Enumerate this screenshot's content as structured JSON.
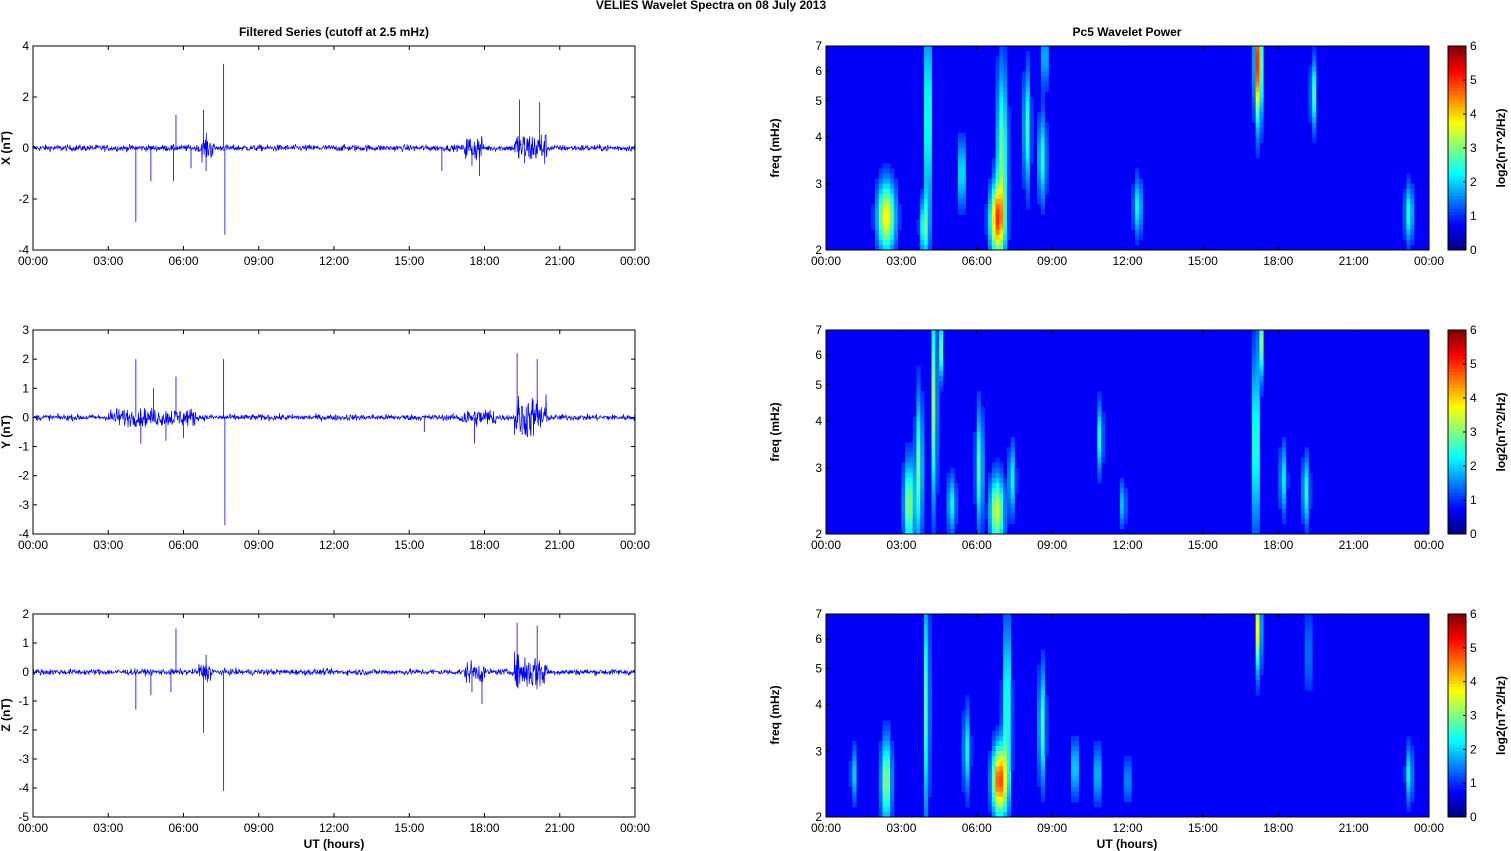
{
  "figure_title": "VELIES Wavelet Spectra on 08 July      2013",
  "colors": {
    "trace": "#0000ff",
    "axes": "#000000"
  },
  "chart_data": [
    {
      "type": "line",
      "title": "Filtered Series (cutoff at 2.5 mHz)",
      "ylabel": "X (nT)",
      "xlabel": "",
      "xlim": [
        0,
        24
      ],
      "ylim": [
        -4,
        4
      ],
      "yticks": [
        -4,
        -2,
        0,
        2,
        4
      ],
      "xtick_labels": [
        "00:00",
        "03:00",
        "06:00",
        "09:00",
        "12:00",
        "15:00",
        "18:00",
        "21:00",
        "00:00"
      ],
      "base_noise": 0.12,
      "spikes": [
        [
          4.1,
          -2.9
        ],
        [
          4.7,
          -1.3
        ],
        [
          5.6,
          -1.3
        ],
        [
          5.7,
          1.3
        ],
        [
          6.3,
          -0.8
        ],
        [
          6.8,
          1.5
        ],
        [
          6.9,
          -0.9
        ],
        [
          7.6,
          3.3
        ],
        [
          7.65,
          -3.4
        ],
        [
          16.3,
          -0.9
        ],
        [
          17.5,
          -0.7
        ],
        [
          17.8,
          -1.1
        ],
        [
          19.4,
          1.9
        ],
        [
          19.6,
          -0.6
        ],
        [
          20.2,
          1.8
        ]
      ],
      "bursts": [
        [
          6.6,
          7.2,
          0.45
        ],
        [
          17.2,
          17.9,
          0.5
        ],
        [
          19.2,
          20.5,
          0.6
        ]
      ]
    },
    {
      "type": "heatmap",
      "title": "Pc5 Wavelet Power",
      "ylabel": "freq (mHz)",
      "xlabel": "",
      "xlim": [
        0,
        24
      ],
      "ylim": [
        2,
        7
      ],
      "yscale": "log",
      "yticks": [
        2,
        3,
        4,
        5,
        6,
        7
      ],
      "xtick_labels": [
        "00:00",
        "03:00",
        "06:00",
        "09:00",
        "12:00",
        "15:00",
        "18:00",
        "21:00",
        "00:00"
      ],
      "colorbar": {
        "label": "log2(nT^2/Hz)",
        "ticks": [
          0,
          1,
          2,
          3,
          4,
          5,
          6
        ],
        "range": [
          0,
          6
        ],
        "colormap": "jet"
      },
      "blobs": [
        [
          2.4,
          2.45,
          0.25,
          0.12,
          3.6
        ],
        [
          3.9,
          2.3,
          0.12,
          0.1,
          2.2
        ],
        [
          4.05,
          4.5,
          0.08,
          0.35,
          2.8
        ],
        [
          5.4,
          3.2,
          0.12,
          0.12,
          1.8
        ],
        [
          6.8,
          2.4,
          0.2,
          0.12,
          4.2
        ],
        [
          7.0,
          3.6,
          0.15,
          0.3,
          2.5
        ],
        [
          8.0,
          4.2,
          0.1,
          0.2,
          2.2
        ],
        [
          8.6,
          3.5,
          0.12,
          0.15,
          2.0
        ],
        [
          8.7,
          6.5,
          0.06,
          0.1,
          2.5
        ],
        [
          12.4,
          2.6,
          0.12,
          0.1,
          1.8
        ],
        [
          17.2,
          6.3,
          0.1,
          0.2,
          5.0
        ],
        [
          19.4,
          5.2,
          0.08,
          0.12,
          2.2
        ],
        [
          23.2,
          2.5,
          0.12,
          0.1,
          2.0
        ]
      ]
    },
    {
      "type": "line",
      "title": "",
      "ylabel": "Y (nT)",
      "xlabel": "",
      "xlim": [
        0,
        24
      ],
      "ylim": [
        -4,
        3
      ],
      "yticks": [
        -4,
        -3,
        -2,
        -1,
        0,
        1,
        2,
        3
      ],
      "xtick_labels": [
        "00:00",
        "03:00",
        "06:00",
        "09:00",
        "12:00",
        "15:00",
        "18:00",
        "21:00",
        "00:00"
      ],
      "base_noise": 0.1,
      "spikes": [
        [
          4.1,
          2.0
        ],
        [
          4.3,
          -0.9
        ],
        [
          4.8,
          1.0
        ],
        [
          5.3,
          -0.8
        ],
        [
          5.7,
          1.4
        ],
        [
          6.0,
          -0.7
        ],
        [
          7.6,
          2.0
        ],
        [
          7.65,
          -3.7
        ],
        [
          15.6,
          -0.5
        ],
        [
          17.6,
          -0.9
        ],
        [
          19.3,
          2.2
        ],
        [
          19.5,
          -0.6
        ],
        [
          20.1,
          2.0
        ]
      ],
      "bursts": [
        [
          3.0,
          6.5,
          0.3
        ],
        [
          17.0,
          18.5,
          0.3
        ],
        [
          19.2,
          20.5,
          0.7
        ]
      ]
    },
    {
      "type": "heatmap",
      "title": "",
      "ylabel": "freq (mHz)",
      "xlabel": "",
      "xlim": [
        0,
        24
      ],
      "ylim": [
        2,
        7
      ],
      "yscale": "log",
      "yticks": [
        2,
        3,
        4,
        5,
        6,
        7
      ],
      "xtick_labels": [
        "00:00",
        "03:00",
        "06:00",
        "09:00",
        "12:00",
        "15:00",
        "18:00",
        "21:00",
        "00:00"
      ],
      "colorbar": {
        "label": "log2(nT^2/Hz)",
        "ticks": [
          0,
          1,
          2,
          3,
          4,
          5,
          6
        ],
        "range": [
          0,
          6
        ],
        "colormap": "jet"
      },
      "blobs": [
        [
          3.3,
          2.4,
          0.15,
          0.15,
          2.8
        ],
        [
          3.7,
          3.0,
          0.1,
          0.25,
          2.5
        ],
        [
          4.3,
          4.5,
          0.08,
          0.35,
          2.8
        ],
        [
          4.6,
          6.2,
          0.06,
          0.1,
          2.5
        ],
        [
          5.0,
          2.4,
          0.12,
          0.1,
          1.8
        ],
        [
          6.1,
          3.0,
          0.1,
          0.2,
          2.3
        ],
        [
          6.8,
          2.3,
          0.2,
          0.12,
          3.2
        ],
        [
          7.4,
          2.8,
          0.1,
          0.12,
          1.8
        ],
        [
          10.9,
          3.6,
          0.08,
          0.12,
          2.0
        ],
        [
          11.8,
          2.4,
          0.1,
          0.08,
          1.4
        ],
        [
          17.1,
          3.5,
          0.1,
          0.3,
          2.5
        ],
        [
          17.3,
          6.5,
          0.06,
          0.12,
          2.8
        ],
        [
          18.2,
          2.8,
          0.1,
          0.12,
          1.7
        ],
        [
          19.1,
          2.6,
          0.1,
          0.12,
          2.0
        ]
      ]
    },
    {
      "type": "line",
      "title": "",
      "ylabel": "Z (nT)",
      "xlabel": "UT (hours)",
      "xlim": [
        0,
        24
      ],
      "ylim": [
        -5,
        2
      ],
      "yticks": [
        -5,
        -4,
        -3,
        -2,
        -1,
        0,
        1,
        2
      ],
      "xtick_labels": [
        "00:00",
        "03:00",
        "06:00",
        "09:00",
        "12:00",
        "15:00",
        "18:00",
        "21:00",
        "00:00"
      ],
      "base_noise": 0.1,
      "spikes": [
        [
          4.1,
          -1.3
        ],
        [
          4.7,
          -0.8
        ],
        [
          5.5,
          -0.7
        ],
        [
          5.7,
          1.5
        ],
        [
          6.8,
          -2.1
        ],
        [
          6.9,
          0.6
        ],
        [
          7.6,
          -4.1
        ],
        [
          17.5,
          -0.7
        ],
        [
          17.9,
          -1.1
        ],
        [
          19.3,
          1.7
        ],
        [
          20.1,
          1.6
        ]
      ],
      "bursts": [
        [
          6.6,
          7.2,
          0.3
        ],
        [
          17.2,
          18.0,
          0.35
        ],
        [
          19.2,
          20.5,
          0.6
        ]
      ]
    },
    {
      "type": "heatmap",
      "title": "",
      "ylabel": "freq (mHz)",
      "xlabel": "UT (hours)",
      "xlim": [
        0,
        24
      ],
      "ylim": [
        2,
        7
      ],
      "yscale": "log",
      "yticks": [
        2,
        3,
        4,
        5,
        6,
        7
      ],
      "xtick_labels": [
        "00:00",
        "03:00",
        "06:00",
        "09:00",
        "12:00",
        "15:00",
        "18:00",
        "21:00",
        "00:00"
      ],
      "colorbar": {
        "label": "log2(nT^2/Hz)",
        "ticks": [
          0,
          1,
          2,
          3,
          4,
          5,
          6
        ],
        "range": [
          0,
          6
        ],
        "colormap": "jet"
      },
      "blobs": [
        [
          1.1,
          2.6,
          0.08,
          0.1,
          1.5
        ],
        [
          2.4,
          2.5,
          0.15,
          0.15,
          2.8
        ],
        [
          4.0,
          4.0,
          0.08,
          0.4,
          2.3
        ],
        [
          5.6,
          3.0,
          0.1,
          0.15,
          1.8
        ],
        [
          6.9,
          2.5,
          0.2,
          0.12,
          4.8
        ],
        [
          7.2,
          4.0,
          0.12,
          0.3,
          2.2
        ],
        [
          8.6,
          3.5,
          0.1,
          0.2,
          2.2
        ],
        [
          9.9,
          2.7,
          0.1,
          0.1,
          1.8
        ],
        [
          10.8,
          2.6,
          0.1,
          0.1,
          1.6
        ],
        [
          12.0,
          2.5,
          0.1,
          0.08,
          1.2
        ],
        [
          17.2,
          6.4,
          0.08,
          0.15,
          3.5
        ],
        [
          19.2,
          5.5,
          0.06,
          0.15,
          1.6
        ],
        [
          23.2,
          2.6,
          0.1,
          0.1,
          1.8
        ]
      ]
    }
  ]
}
